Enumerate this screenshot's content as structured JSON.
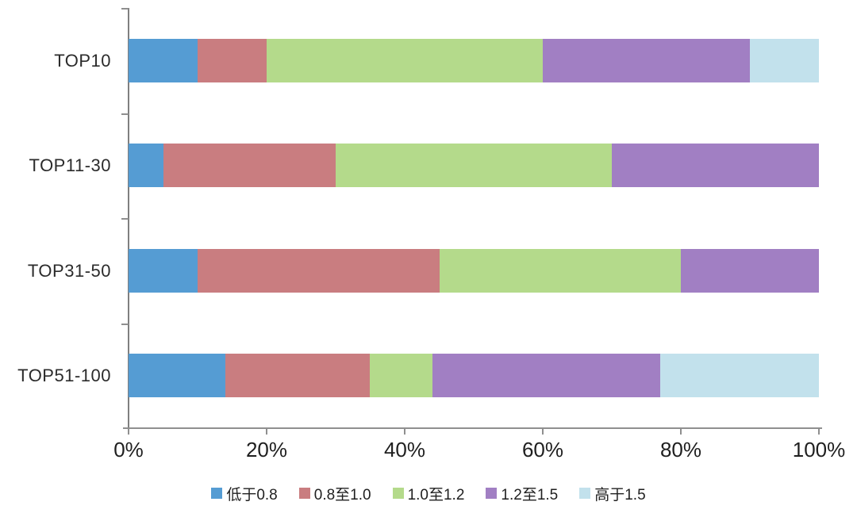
{
  "chart_data": {
    "type": "bar",
    "orientation": "horizontal-stacked",
    "title": "",
    "xlabel": "",
    "ylabel": "",
    "categories": [
      "TOP10",
      "TOP11-30",
      "TOP31-50",
      "TOP51-100"
    ],
    "series": [
      {
        "name": "低于0.8",
        "color": "#559CD3",
        "values": [
          10,
          5,
          10,
          14
        ]
      },
      {
        "name": "0.8至1.0",
        "color": "#C97D80",
        "values": [
          10,
          25,
          35,
          21
        ]
      },
      {
        "name": "1.0至1.2",
        "color": "#B4DA8B",
        "values": [
          40,
          40,
          35,
          9
        ]
      },
      {
        "name": "1.2至1.5",
        "color": "#A17FC3",
        "values": [
          30,
          30,
          20,
          33
        ]
      },
      {
        "name": "高于1.5",
        "color": "#C2E1EC",
        "values": [
          10,
          0,
          0,
          23
        ]
      }
    ],
    "x_axis": {
      "min": 0,
      "max": 100,
      "tick_labels": [
        "0%",
        "20%",
        "40%",
        "60%",
        "80%",
        "100%"
      ],
      "tick_values": [
        0,
        20,
        40,
        60,
        80,
        100
      ]
    },
    "grid": false,
    "legend_position": "bottom",
    "axis_color": "#8F8F8F",
    "text_color": "#1F1F1F",
    "background_color": "#FFFFFF"
  }
}
